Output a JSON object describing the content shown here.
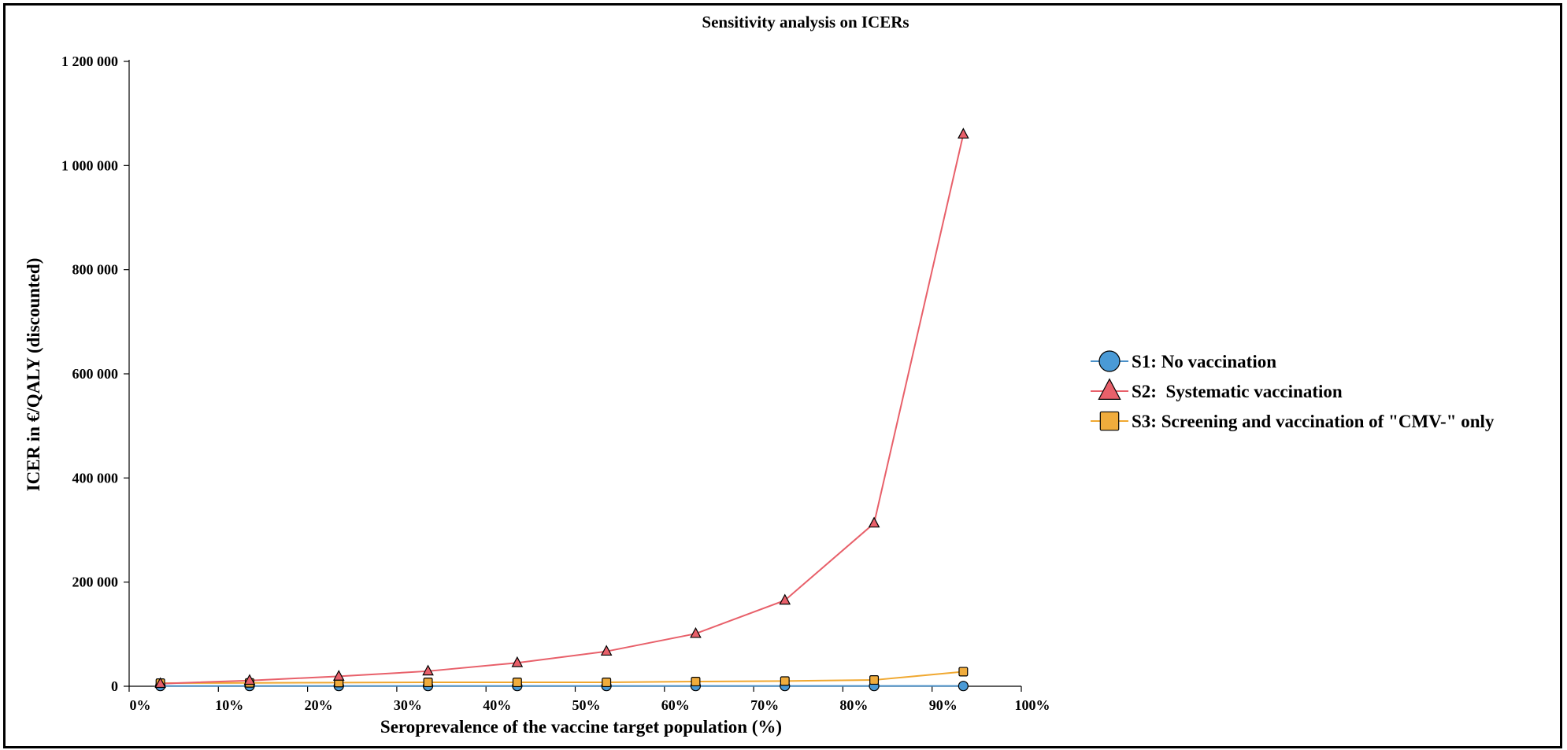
{
  "chart_data": {
    "type": "line",
    "title": "Sensitivity analysis on ICERs",
    "xlabel": "Seroprevalence of the vaccine target population (%)",
    "ylabel": "ICER in €/QALY (discounted)",
    "xlim": [
      0,
      100
    ],
    "ylim": [
      0,
      1200000
    ],
    "x_ticks": [
      0,
      10,
      20,
      30,
      40,
      50,
      60,
      70,
      80,
      90,
      100
    ],
    "x_tick_labels": [
      "0%",
      "10%",
      "20%",
      "30%",
      "40%",
      "50%",
      "60%",
      "70%",
      "80%",
      "90%",
      "100%"
    ],
    "y_ticks": [
      0,
      200000,
      400000,
      600000,
      800000,
      1000000,
      1200000
    ],
    "y_tick_labels": [
      "0",
      "200 000",
      "400 000",
      "600 000",
      "800 000",
      "1 000 000",
      "1 200 000"
    ],
    "grid": false,
    "legend_position": "right",
    "x": [
      3.5,
      13.5,
      23.5,
      33.5,
      43.5,
      53.5,
      63.5,
      73.5,
      83.5,
      93.5
    ],
    "series": [
      {
        "name": "S1: No vaccination",
        "marker": "circle",
        "line_color": "#4a90c8",
        "marker_fill": "#4a9ad6",
        "values": [
          500,
          500,
          500,
          500,
          500,
          500,
          500,
          500,
          500,
          500
        ]
      },
      {
        "name": "S2:  Systematic vaccination",
        "marker": "triangle",
        "line_color": "#e8606a",
        "marker_fill": "#e8606a",
        "values": [
          5000,
          11000,
          19000,
          29000,
          45000,
          67000,
          101000,
          165000,
          313000,
          1060000
        ]
      },
      {
        "name": "S3: Screening and vaccination of \"CMV-\" only",
        "marker": "square",
        "line_color": "#f0a830",
        "marker_fill": "#f0ac3c",
        "values": [
          6000,
          6500,
          7000,
          7500,
          7500,
          7500,
          9000,
          10000,
          12000,
          28000
        ]
      }
    ]
  }
}
